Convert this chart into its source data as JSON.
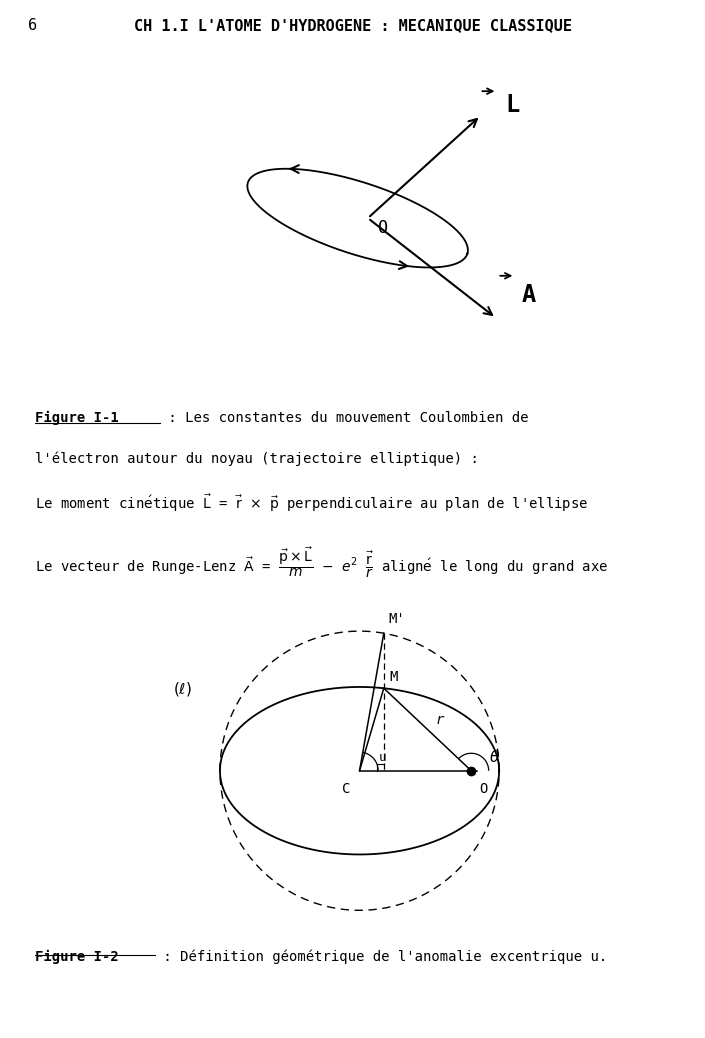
{
  "bg_color": "#ffffff",
  "text_color": "#000000",
  "header_num": "6",
  "header_title": "CH 1.I L'ATOME D'HYDROGENE : MECANIQUE CLASSIQUE",
  "fig1_label": "Figure I-1",
  "fig1_cap1": " : Les constantes du mouvement Coulombien de",
  "fig1_cap2": "l'électron autour du noyau (trajectoire elliptique) :",
  "fig1_text1a": "Le moment cinétique ",
  "fig1_text1b": " perpendiculaire au plan de l'ellipse",
  "fig1_text2a": "Le vecteur de Runge-Lenz ",
  "fig1_text2b": " aligné le long du grand axe",
  "fig2_label": "Figure I-2",
  "fig2_cap": " : Définition géométrique de l'anomalie excentrique u."
}
